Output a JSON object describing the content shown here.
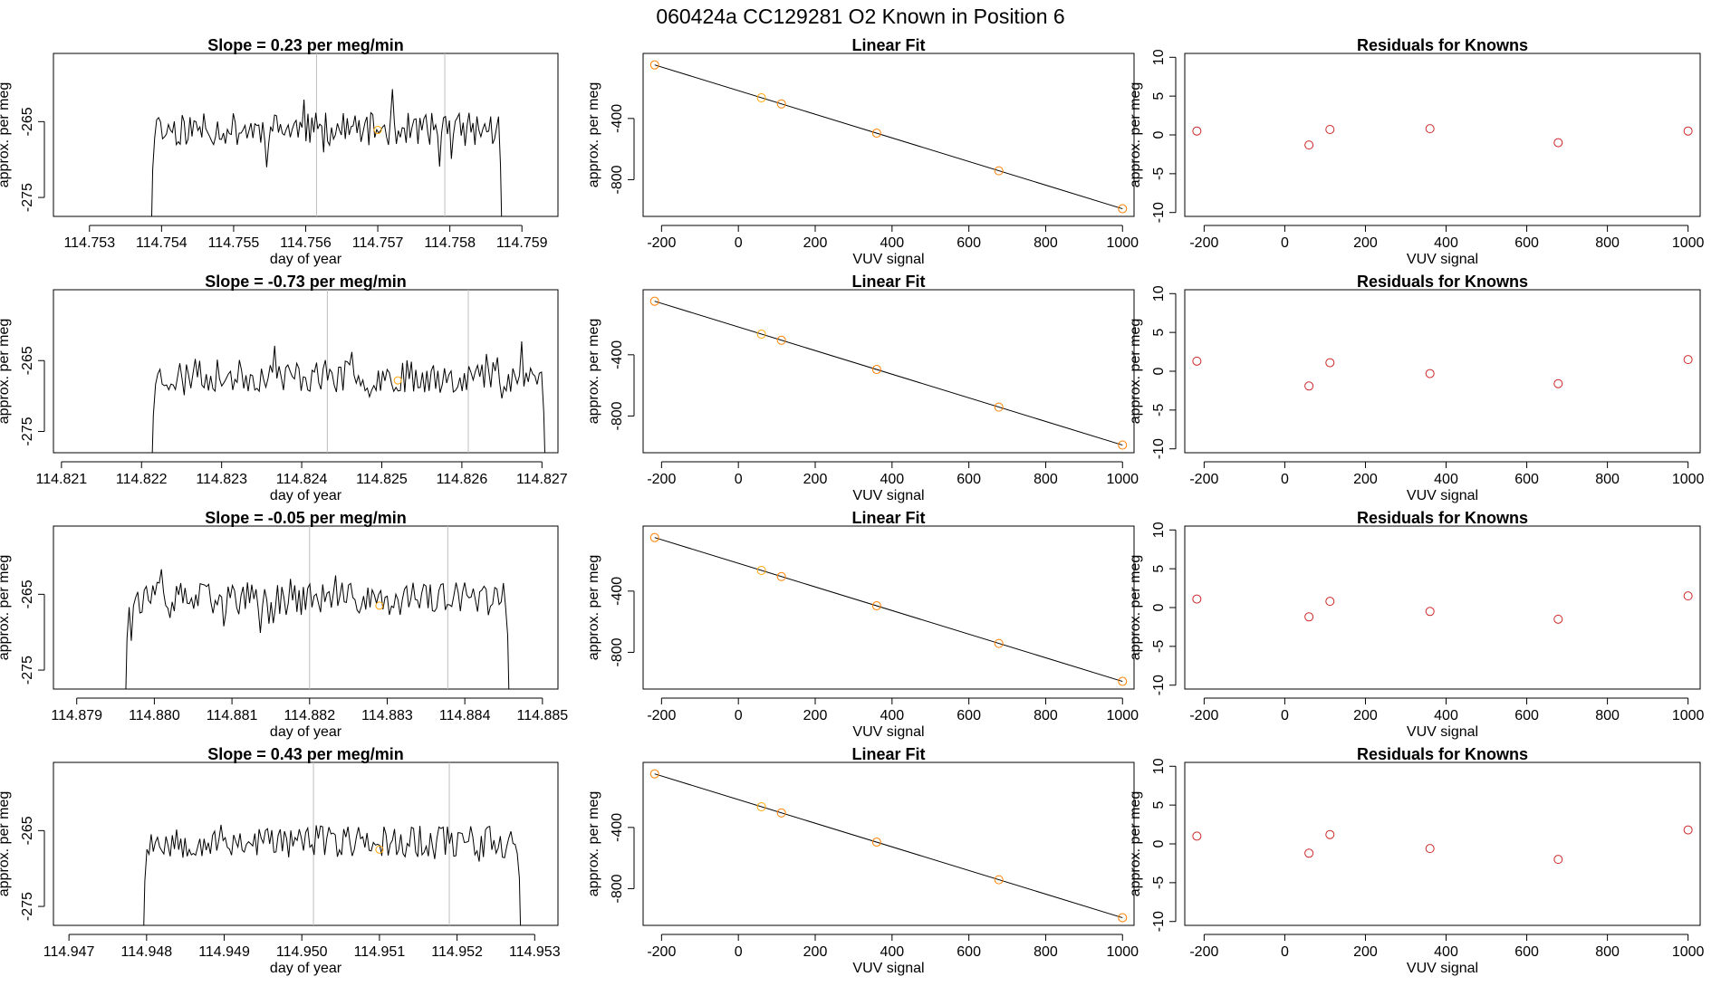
{
  "title": "060424a     CC129281   O2 Known in Position  6",
  "colors": {
    "line": "#000000",
    "axis": "#000000",
    "vline": "#bebebe",
    "known": "#ffa500",
    "fitpoint": "#ff7f00",
    "residual": "#cd2626",
    "background": "#ffffff"
  },
  "chart_data": [
    {
      "type": "line",
      "panel": "timeseries",
      "row": 1,
      "title": "Slope =  0.23  per meg/min",
      "xlabel": "day of year",
      "ylabel": "approx. per meg",
      "xlim": [
        114.7525,
        114.7595
      ],
      "ylim": [
        -277.5,
        -256.0
      ],
      "xticks": [
        "114.753",
        "114.754",
        "114.755",
        "114.756",
        "114.757",
        "114.758",
        "114.759"
      ],
      "yticks": [
        "-265",
        "-275"
      ],
      "vlines": [
        114.75615,
        114.75793
      ],
      "known_point": {
        "x": 114.757,
        "y": -266.1
      },
      "series": {
        "x_start": 114.75385,
        "x_end": 114.75873,
        "n": 180,
        "baseline": -266.0,
        "amplitude": 2.2,
        "seed": 11
      }
    },
    {
      "type": "line",
      "panel": "fit",
      "row": 1,
      "title": "Linear Fit",
      "xlabel": "VUV signal",
      "ylabel": "approx. per meg",
      "xlim": [
        -248,
        1030
      ],
      "ylim": [
        -1040,
        25
      ],
      "xticks": [
        "-200",
        "0",
        "200",
        "400",
        "600",
        "800",
        "1000"
      ],
      "yticks": [
        "-400",
        "-800"
      ],
      "line": {
        "x1": -218,
        "y1": -50,
        "x2": 1000,
        "y2": -990
      },
      "points": [
        {
          "x": -218,
          "y": -50
        },
        {
          "x": 60,
          "y": -265
        },
        {
          "x": 112,
          "y": -305
        },
        {
          "x": 360,
          "y": -496
        },
        {
          "x": 678,
          "y": -742
        },
        {
          "x": 1000,
          "y": -990
        }
      ],
      "known_index": 1
    },
    {
      "type": "scatter",
      "panel": "residuals",
      "row": 1,
      "title": "Residuals for Knowns",
      "xlabel": "VUV signal",
      "ylabel": "approx. per meg",
      "xlim": [
        -248,
        1030
      ],
      "ylim": [
        -10.5,
        10.5
      ],
      "xticks": [
        "-200",
        "0",
        "200",
        "400",
        "600",
        "800",
        "1000"
      ],
      "yticks": [
        "10",
        "5",
        "0",
        "-5",
        "-10"
      ],
      "points": [
        {
          "x": -218,
          "y": 0.5
        },
        {
          "x": 60,
          "y": -1.3
        },
        {
          "x": 112,
          "y": 0.7
        },
        {
          "x": 360,
          "y": 0.8
        },
        {
          "x": 678,
          "y": -1.0
        },
        {
          "x": 1000,
          "y": 0.5
        }
      ]
    },
    {
      "type": "line",
      "panel": "timeseries",
      "row": 2,
      "title": "Slope =  -0.73  per meg/min",
      "xlabel": "day of year",
      "ylabel": "approx. per meg",
      "xlim": [
        114.8209,
        114.8272
      ],
      "ylim": [
        -278.0,
        -255.0
      ],
      "xticks": [
        "114.821",
        "114.822",
        "114.823",
        "114.824",
        "114.825",
        "114.826",
        "114.827"
      ],
      "yticks": [
        "-265",
        "-275"
      ],
      "vlines": [
        114.82432,
        114.82608
      ],
      "known_point": {
        "x": 114.8252,
        "y": -267.8
      },
      "series": {
        "x_start": 114.82212,
        "x_end": 114.82705,
        "n": 180,
        "baseline": -267.2,
        "amplitude": 2.3,
        "seed": 23
      }
    },
    {
      "type": "line",
      "panel": "fit",
      "row": 2,
      "title": "Linear Fit",
      "xlabel": "VUV signal",
      "ylabel": "approx. per meg",
      "xlim": [
        -248,
        1030
      ],
      "ylim": [
        -1040,
        25
      ],
      "xticks": [
        "-200",
        "0",
        "200",
        "400",
        "600",
        "800",
        "1000"
      ],
      "yticks": [
        "-400",
        "-800"
      ],
      "line": {
        "x1": -218,
        "y1": -50,
        "x2": 1000,
        "y2": -990
      },
      "points": [
        {
          "x": -218,
          "y": -50
        },
        {
          "x": 60,
          "y": -265
        },
        {
          "x": 112,
          "y": -305
        },
        {
          "x": 360,
          "y": -496
        },
        {
          "x": 678,
          "y": -742
        },
        {
          "x": 1000,
          "y": -990
        }
      ],
      "known_index": 1
    },
    {
      "type": "scatter",
      "panel": "residuals",
      "row": 2,
      "title": "Residuals for Knowns",
      "xlabel": "VUV signal",
      "ylabel": "approx. per meg",
      "xlim": [
        -248,
        1030
      ],
      "ylim": [
        -10.5,
        10.5
      ],
      "xticks": [
        "-200",
        "0",
        "200",
        "400",
        "600",
        "800",
        "1000"
      ],
      "yticks": [
        "10",
        "5",
        "0",
        "-5",
        "-10"
      ],
      "points": [
        {
          "x": -218,
          "y": 1.3
        },
        {
          "x": 60,
          "y": -1.9
        },
        {
          "x": 112,
          "y": 1.1
        },
        {
          "x": 360,
          "y": -0.3
        },
        {
          "x": 678,
          "y": -1.6
        },
        {
          "x": 1000,
          "y": 1.5
        }
      ]
    },
    {
      "type": "line",
      "panel": "timeseries",
      "row": 3,
      "title": "Slope =  -0.05  per meg/min",
      "xlabel": "day of year",
      "ylabel": "approx. per meg",
      "xlim": [
        114.8787,
        114.8852
      ],
      "ylim": [
        -277.5,
        -256.0
      ],
      "xticks": [
        "114.879",
        "114.880",
        "114.881",
        "114.882",
        "114.883",
        "114.884",
        "114.885"
      ],
      "yticks": [
        "-265",
        "-275"
      ],
      "vlines": [
        114.882,
        114.88378
      ],
      "known_point": {
        "x": 114.8829,
        "y": -266.5
      },
      "series": {
        "x_start": 114.87962,
        "x_end": 114.88458,
        "n": 180,
        "baseline": -265.6,
        "amplitude": 2.2,
        "seed": 37
      }
    },
    {
      "type": "line",
      "panel": "fit",
      "row": 3,
      "title": "Linear Fit",
      "xlabel": "VUV signal",
      "ylabel": "approx. per meg",
      "xlim": [
        -248,
        1030
      ],
      "ylim": [
        -1040,
        25
      ],
      "xticks": [
        "-200",
        "0",
        "200",
        "400",
        "600",
        "800",
        "1000"
      ],
      "yticks": [
        "-400",
        "-800"
      ],
      "line": {
        "x1": -218,
        "y1": -50,
        "x2": 1000,
        "y2": -990
      },
      "points": [
        {
          "x": -218,
          "y": -50
        },
        {
          "x": 60,
          "y": -265
        },
        {
          "x": 112,
          "y": -305
        },
        {
          "x": 360,
          "y": -496
        },
        {
          "x": 678,
          "y": -742
        },
        {
          "x": 1000,
          "y": -990
        }
      ],
      "known_index": 1
    },
    {
      "type": "scatter",
      "panel": "residuals",
      "row": 3,
      "title": "Residuals for Knowns",
      "xlabel": "VUV signal",
      "ylabel": "approx. per meg",
      "xlim": [
        -248,
        1030
      ],
      "ylim": [
        -10.5,
        10.5
      ],
      "xticks": [
        "-200",
        "0",
        "200",
        "400",
        "600",
        "800",
        "1000"
      ],
      "yticks": [
        "10",
        "5",
        "0",
        "-5",
        "-10"
      ],
      "points": [
        {
          "x": -218,
          "y": 1.1
        },
        {
          "x": 60,
          "y": -1.2
        },
        {
          "x": 112,
          "y": 0.8
        },
        {
          "x": 360,
          "y": -0.5
        },
        {
          "x": 678,
          "y": -1.5
        },
        {
          "x": 1000,
          "y": 1.5
        }
      ]
    },
    {
      "type": "line",
      "panel": "timeseries",
      "row": 4,
      "title": "Slope =  0.43  per meg/min",
      "xlabel": "day of year",
      "ylabel": "approx. per meg",
      "xlim": [
        114.9468,
        114.9533
      ],
      "ylim": [
        -277.5,
        -256.0
      ],
      "xticks": [
        "114.947",
        "114.948",
        "114.949",
        "114.950",
        "114.951",
        "114.952",
        "114.953"
      ],
      "yticks": [
        "-265",
        "-275"
      ],
      "vlines": [
        114.95015,
        114.9519
      ],
      "known_point": {
        "x": 114.951,
        "y": -267.5
      },
      "series": {
        "x_start": 114.94795,
        "x_end": 114.95283,
        "n": 180,
        "baseline": -266.4,
        "amplitude": 2.2,
        "seed": 53
      }
    },
    {
      "type": "line",
      "panel": "fit",
      "row": 4,
      "title": "Linear Fit",
      "xlabel": "VUV signal",
      "ylabel": "approx. per meg",
      "xlim": [
        -248,
        1030
      ],
      "ylim": [
        -1040,
        25
      ],
      "xticks": [
        "-200",
        "0",
        "200",
        "400",
        "600",
        "800",
        "1000"
      ],
      "yticks": [
        "-400",
        "-800"
      ],
      "line": {
        "x1": -218,
        "y1": -50,
        "x2": 1000,
        "y2": -990
      },
      "points": [
        {
          "x": -218,
          "y": -50
        },
        {
          "x": 60,
          "y": -265
        },
        {
          "x": 112,
          "y": -305
        },
        {
          "x": 360,
          "y": -496
        },
        {
          "x": 678,
          "y": -742
        },
        {
          "x": 1000,
          "y": -990
        }
      ],
      "known_index": 1
    },
    {
      "type": "scatter",
      "panel": "residuals",
      "row": 4,
      "title": "Residuals for Knowns",
      "xlabel": "VUV signal",
      "ylabel": "approx. per meg",
      "xlim": [
        -248,
        1030
      ],
      "ylim": [
        -10.5,
        10.5
      ],
      "xticks": [
        "-200",
        "0",
        "200",
        "400",
        "600",
        "800",
        "1000"
      ],
      "yticks": [
        "10",
        "5",
        "0",
        "-5",
        "-10"
      ],
      "points": [
        {
          "x": -218,
          "y": 1.0
        },
        {
          "x": 60,
          "y": -1.2
        },
        {
          "x": 112,
          "y": 1.2
        },
        {
          "x": 360,
          "y": -0.6
        },
        {
          "x": 678,
          "y": -2.0
        },
        {
          "x": 1000,
          "y": 1.8
        }
      ]
    }
  ]
}
